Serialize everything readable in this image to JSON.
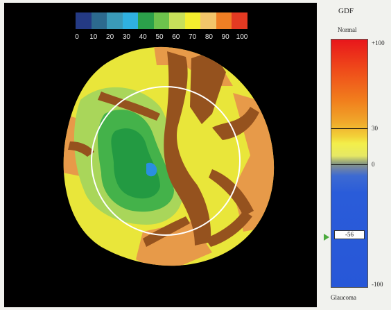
{
  "scale": {
    "labels": [
      "0",
      "10",
      "20",
      "30",
      "40",
      "50",
      "60",
      "70",
      "80",
      "90",
      "100"
    ],
    "colors": [
      "#243a84",
      "#2c6a8e",
      "#3a9ab8",
      "#2fb1e0",
      "#2ba04a",
      "#6dc24c",
      "#c7e05a",
      "#f4ee2e",
      "#f2c56a",
      "#ef7f24",
      "#e33a22"
    ]
  },
  "gdf": {
    "title": "GDF",
    "normal_label": "Normal",
    "glaucoma_label": "Glaucoma",
    "ticks": {
      "max": "+100",
      "upper": "30",
      "zero": "0",
      "min": "-100"
    },
    "current_value": "-56",
    "marker_color": "#4aaa3c"
  },
  "map_colors": {
    "background": "#000000",
    "disc_yellow": "#e9e63a",
    "light_green": "#a9d65a",
    "mid_green": "#44b24a",
    "dark_green": "#239a42",
    "blue": "#2a8fe0",
    "orange": "#e79a49",
    "brown": "#95521e",
    "ring": "#ffffff"
  }
}
